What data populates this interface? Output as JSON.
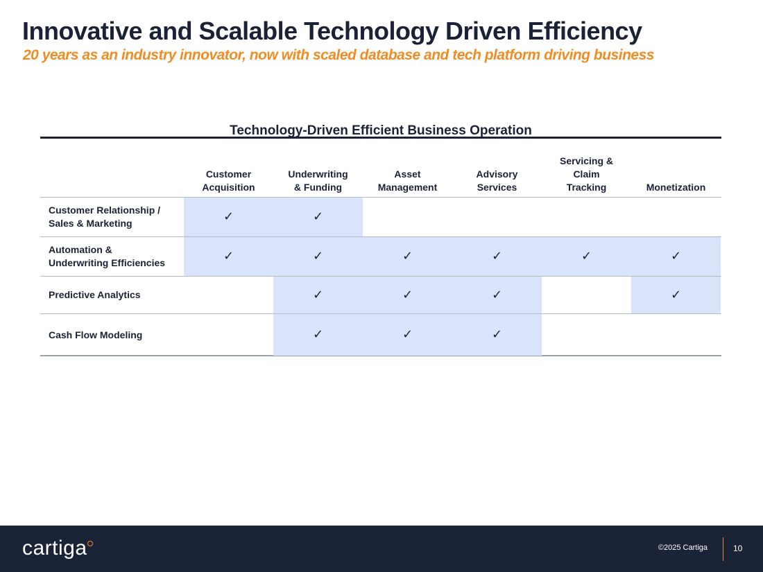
{
  "slide": {
    "title": "Innovative and Scalable Technology Driven Efficiency",
    "subtitle": "20 years as an industry innovator, now with scaled database and tech platform driving business"
  },
  "table": {
    "title": "Technology-Driven Efficient Business Operation",
    "columns": [
      "Customer\nAcquisition",
      "Underwriting\n& Funding",
      "Asset\nManagement",
      "Advisory\nServices",
      "Servicing &\nClaim\nTracking",
      "Monetization"
    ],
    "rows": [
      {
        "label": "Customer Relationship /\nSales & Marketing",
        "cells": [
          true,
          true,
          false,
          false,
          false,
          false
        ]
      },
      {
        "label": "Automation &\nUnderwriting Efficiencies",
        "cells": [
          true,
          true,
          true,
          true,
          true,
          true
        ]
      },
      {
        "label": "Predictive Analytics",
        "cells": [
          false,
          true,
          true,
          true,
          false,
          true
        ]
      },
      {
        "label": "Cash Flow Modeling",
        "cells": [
          false,
          true,
          true,
          true,
          false,
          false
        ]
      }
    ],
    "check_glyph": "✓",
    "highlight_color": "#d9e4fb"
  },
  "footer": {
    "logo_text": "cartiga",
    "copyright": "©2025 Cartiga",
    "page_number": "10"
  },
  "colors": {
    "navy": "#1b2337",
    "accent_orange": "#f08c24"
  }
}
